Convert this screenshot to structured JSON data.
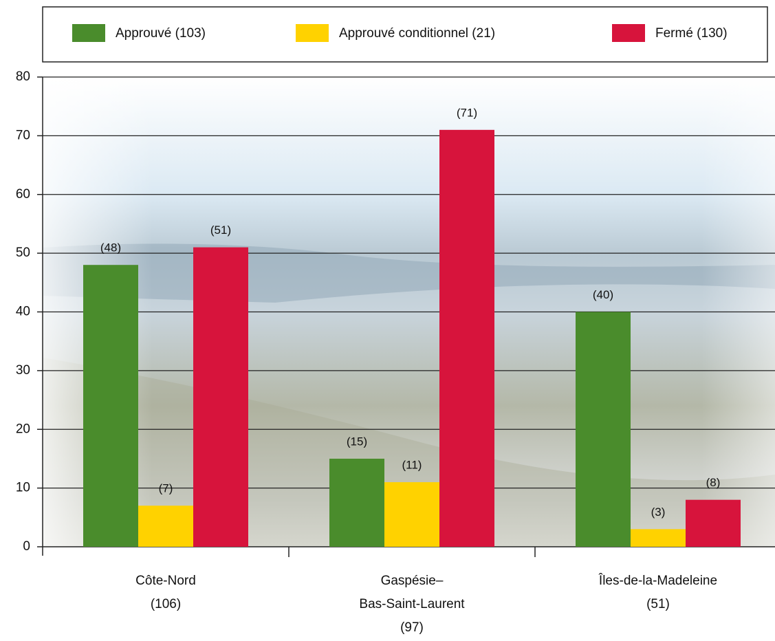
{
  "chart_data": {
    "type": "bar",
    "categories": [
      [
        "Côte-Nord",
        "(106)"
      ],
      [
        "Gaspésie–",
        "Bas-Saint-Laurent",
        "(97)"
      ],
      [
        "Îles-de-la-Madeleine",
        "(51)"
      ]
    ],
    "series": [
      {
        "name": "Approuvé (103)",
        "color": "#4a8c2c",
        "values": [
          48,
          15,
          40
        ],
        "value_labels": [
          "(48)",
          "(15)",
          "(40)"
        ]
      },
      {
        "name": "Approuvé conditionnel (21)",
        "color": "#ffd200",
        "values": [
          7,
          11,
          3
        ],
        "value_labels": [
          "(7)",
          "(11)",
          "(3)"
        ]
      },
      {
        "name": "Fermé (130)",
        "color": "#d7143c",
        "values": [
          51,
          71,
          8
        ],
        "value_labels": [
          "(51)",
          "(71)",
          "(8)"
        ]
      }
    ],
    "ylim": [
      0,
      80
    ],
    "yticks": [
      0,
      10,
      20,
      30,
      40,
      50,
      60,
      70,
      80
    ],
    "grid": true
  }
}
